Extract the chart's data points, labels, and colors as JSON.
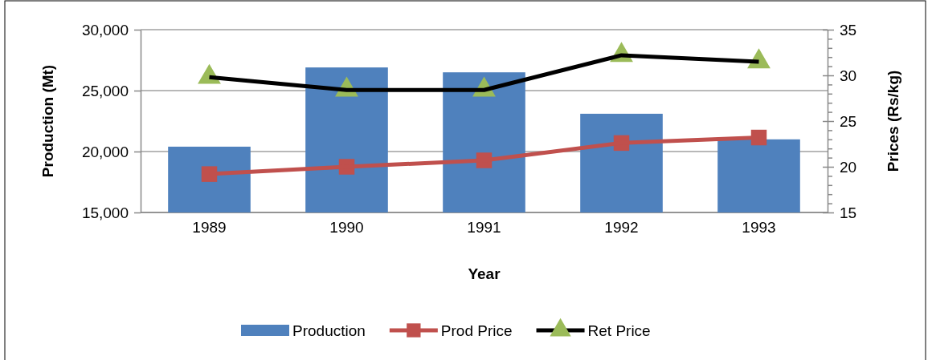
{
  "chart_data": {
    "type": "bar",
    "xlabel": "Year",
    "ylabel": "Production (Mt)",
    "y2label": "Prices (Rs/kg)",
    "categories": [
      "1989",
      "1990",
      "1991",
      "1992",
      "1993"
    ],
    "series": [
      {
        "name": "Production",
        "color": "#4f81bd",
        "values": [
          20400,
          26900,
          26500,
          23100,
          21000
        ]
      },
      {
        "name": "Prod Price",
        "type": "line",
        "axis": "y2",
        "color": "#c0504d",
        "marker": "square",
        "values": [
          19.2,
          20.0,
          20.7,
          22.6,
          23.2
        ]
      },
      {
        "name": "Ret Price",
        "type": "line",
        "axis": "y2",
        "color": "#000000",
        "marker": "triangle",
        "colors": [
          "#9bbb59",
          "#9bbb59",
          "#9bbb59",
          "#9bbb59",
          "#9bbb59"
        ],
        "values": [
          29.8,
          28.4,
          28.4,
          32.2,
          31.5
        ]
      }
    ],
    "ylim": [
      15000,
      30000
    ],
    "yticks": [
      {
        "value": 15000,
        "label": "15,000"
      },
      {
        "value": 20000,
        "label": "20,000"
      },
      {
        "value": 25000,
        "label": "25,000"
      },
      {
        "value": 30000,
        "label": "30,000"
      }
    ],
    "y2lim": [
      15,
      35
    ],
    "y2ticks": [
      15,
      {
        "value": 16,
        "label": null
      },
      {
        "value": 17,
        "label": null
      },
      {
        "value": 18,
        "label": null
      },
      {
        "value": 19,
        "label": null
      },
      20,
      {
        "value": 21,
        "label": null
      },
      {
        "value": 22,
        "label": null
      },
      {
        "value": 23,
        "label": null
      },
      {
        "value": 24,
        "label": null
      },
      25,
      {
        "value": 26,
        "label": null
      },
      {
        "value": 27,
        "label": null
      },
      {
        "value": 28,
        "label": null
      },
      {
        "value": 29,
        "label": null
      },
      30,
      {
        "value": 31,
        "label": null
      },
      {
        "value": 32,
        "label": null
      },
      {
        "value": 33,
        "label": null
      },
      {
        "value": 34,
        "label": null
      },
      35
    ],
    "grid": "y",
    "legend": "bottom"
  }
}
